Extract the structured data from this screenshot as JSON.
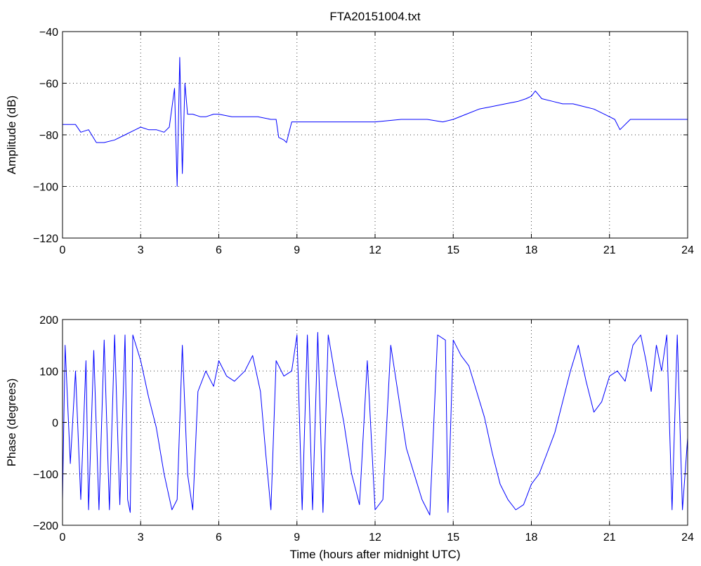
{
  "chart_data": [
    {
      "type": "line",
      "title": "FTA20151004.txt",
      "xlabel": "",
      "ylabel": "Amplitude (dB)",
      "xlim": [
        0,
        24
      ],
      "ylim": [
        -120,
        -40
      ],
      "xticks": [
        0,
        3,
        6,
        9,
        12,
        15,
        18,
        21,
        24
      ],
      "yticks": [
        -120,
        -100,
        -80,
        -60,
        -40
      ],
      "grid": true,
      "series": [
        {
          "color": "#0000ff",
          "x": [
            0,
            0.5,
            0.7,
            1.0,
            1.3,
            1.6,
            2.0,
            2.4,
            2.8,
            3.0,
            3.3,
            3.6,
            3.9,
            4.1,
            4.3,
            4.4,
            4.5,
            4.6,
            4.7,
            4.8,
            5.0,
            5.3,
            5.5,
            5.8,
            6.0,
            6.5,
            7.0,
            7.5,
            8.0,
            8.2,
            8.3,
            8.5,
            8.6,
            8.8,
            9.5,
            10,
            11,
            12,
            13,
            14,
            14.6,
            15.0,
            15.5,
            16,
            16.5,
            17,
            17.5,
            17.8,
            18.0,
            18.15,
            18.4,
            18.8,
            19.2,
            19.6,
            20.0,
            20.4,
            20.8,
            21.0,
            21.2,
            21.4,
            21.8,
            22.2,
            23,
            24
          ],
          "y": [
            -76,
            -76,
            -79,
            -78,
            -83,
            -83,
            -82,
            -80,
            -78,
            -77,
            -78,
            -78,
            -79,
            -77,
            -62,
            -100,
            -50,
            -95,
            -60,
            -72,
            -72,
            -73,
            -73,
            -72,
            -72,
            -73,
            -73,
            -73,
            -74,
            -74,
            -81,
            -82,
            -83,
            -75,
            -75,
            -75,
            -75,
            -75,
            -74,
            -74,
            -75,
            -74,
            -72,
            -70,
            -69,
            -68,
            -67,
            -66,
            -65,
            -63,
            -66,
            -67,
            -68,
            -68,
            -69,
            -70,
            -72,
            -73,
            -74,
            -78,
            -74,
            -74,
            -74,
            -74
          ]
        }
      ]
    },
    {
      "type": "line",
      "title": "",
      "xlabel": "Time (hours after midnight UTC)",
      "ylabel": "Phase (degrees)",
      "xlim": [
        0,
        24
      ],
      "ylim": [
        -200,
        200
      ],
      "xticks": [
        0,
        3,
        6,
        9,
        12,
        15,
        18,
        21,
        24
      ],
      "yticks": [
        -200,
        -100,
        0,
        100,
        200
      ],
      "grid": true,
      "series": [
        {
          "color": "#0000ff",
          "x": [
            0,
            0.1,
            0.3,
            0.5,
            0.7,
            0.9,
            1.0,
            1.2,
            1.4,
            1.6,
            1.8,
            2.0,
            2.2,
            2.4,
            2.5,
            2.6,
            2.7,
            3.0,
            3.3,
            3.6,
            3.9,
            4.2,
            4.4,
            4.6,
            4.8,
            5.0,
            5.2,
            5.5,
            5.8,
            6.0,
            6.3,
            6.6,
            7.0,
            7.3,
            7.6,
            7.8,
            8.0,
            8.2,
            8.5,
            8.8,
            9.0,
            9.2,
            9.4,
            9.6,
            9.8,
            10.0,
            10.2,
            10.5,
            10.8,
            11.1,
            11.4,
            11.7,
            12.0,
            12.3,
            12.6,
            12.9,
            13.2,
            13.5,
            13.8,
            14.1,
            14.4,
            14.7,
            14.8,
            15.0,
            15.3,
            15.6,
            15.9,
            16.2,
            16.5,
            16.8,
            17.1,
            17.4,
            17.7,
            18.0,
            18.3,
            18.6,
            18.9,
            19.2,
            19.5,
            19.8,
            20.1,
            20.4,
            20.7,
            21.0,
            21.3,
            21.6,
            21.9,
            22.2,
            22.4,
            22.6,
            22.8,
            23.0,
            23.2,
            23.4,
            23.6,
            23.8,
            24.0
          ],
          "y": [
            -150,
            150,
            -80,
            100,
            -150,
            120,
            -170,
            140,
            -170,
            160,
            -170,
            170,
            -160,
            170,
            -150,
            -175,
            170,
            120,
            50,
            -10,
            -100,
            -170,
            -150,
            150,
            -100,
            -170,
            60,
            100,
            70,
            120,
            90,
            80,
            100,
            130,
            60,
            -60,
            -170,
            120,
            90,
            100,
            170,
            -170,
            170,
            -170,
            175,
            -175,
            170,
            80,
            0,
            -100,
            -160,
            120,
            -170,
            -150,
            150,
            50,
            -50,
            -100,
            -150,
            -180,
            170,
            160,
            -175,
            160,
            130,
            110,
            60,
            10,
            -60,
            -120,
            -150,
            -170,
            -160,
            -120,
            -100,
            -60,
            -20,
            40,
            100,
            150,
            80,
            20,
            40,
            90,
            100,
            80,
            150,
            170,
            120,
            60,
            150,
            100,
            170,
            -170,
            170,
            -170,
            -30
          ]
        }
      ]
    }
  ]
}
